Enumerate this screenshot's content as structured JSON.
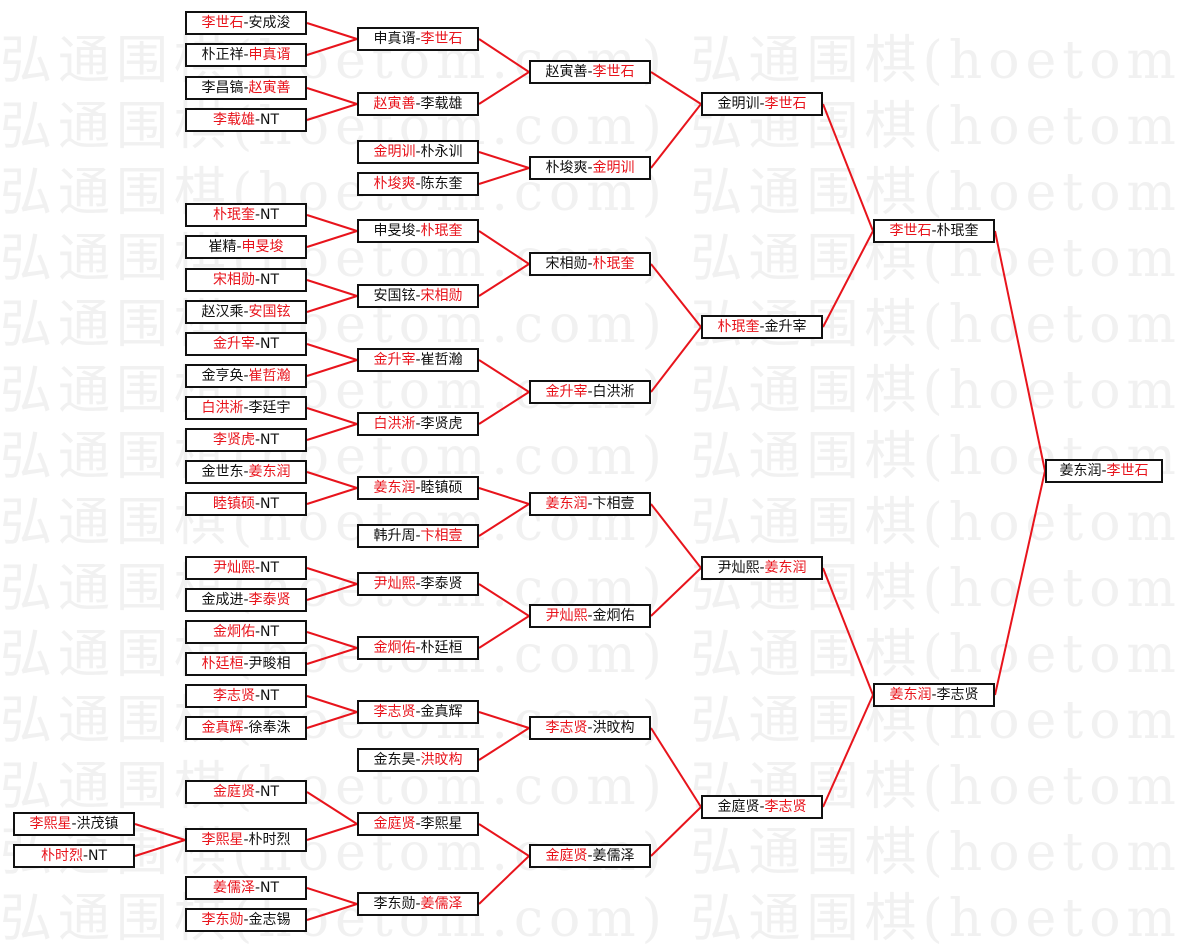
{
  "watermark": "弘通围棋(hoetom.com)",
  "colors": {
    "winner": "#e8141c",
    "line": "#e8141c",
    "text": "#111111",
    "border": "#111111"
  },
  "rounds": [
    {
      "matches": [
        {
          "a": "李熙星",
          "b": "洪茂镇",
          "winner": "a"
        },
        {
          "a": "朴时烈",
          "b": "NT",
          "winner": "a"
        }
      ]
    },
    {
      "matches": [
        {
          "a": "李世石",
          "b": "安成浚",
          "winner": "a"
        },
        {
          "a": "朴正祥",
          "b": "申真谞",
          "winner": "b"
        },
        {
          "a": "李昌镐",
          "b": "赵寅善",
          "winner": "b"
        },
        {
          "a": "李载雄",
          "b": "NT",
          "winner": "a"
        },
        {
          "a": "朴珉奎",
          "b": "NT",
          "winner": "a"
        },
        {
          "a": "崔精",
          "b": "申旻埈",
          "winner": "b"
        },
        {
          "a": "宋相勋",
          "b": "NT",
          "winner": "a"
        },
        {
          "a": "赵汉乘",
          "b": "安国铉",
          "winner": "b"
        },
        {
          "a": "金升宰",
          "b": "NT",
          "winner": "a"
        },
        {
          "a": "金亨奂",
          "b": "崔哲瀚",
          "winner": "b"
        },
        {
          "a": "白洪淅",
          "b": "李廷宇",
          "winner": "a"
        },
        {
          "a": "李贤虎",
          "b": "NT",
          "winner": "a"
        },
        {
          "a": "金世东",
          "b": "姜东润",
          "winner": "b"
        },
        {
          "a": "睦镇硕",
          "b": "NT",
          "winner": "a"
        },
        {
          "a": "尹灿熙",
          "b": "NT",
          "winner": "a"
        },
        {
          "a": "金成进",
          "b": "李泰贤",
          "winner": "b"
        },
        {
          "a": "金炯佑",
          "b": "NT",
          "winner": "a"
        },
        {
          "a": "朴廷桓",
          "b": "尹畯相",
          "winner": "a"
        },
        {
          "a": "李志贤",
          "b": "NT",
          "winner": "a"
        },
        {
          "a": "金真辉",
          "b": "徐奉洙",
          "winner": "a"
        },
        {
          "a": "金庭贤",
          "b": "NT",
          "winner": "a"
        },
        {
          "a": "李熙星",
          "b": "朴时烈",
          "winner": "a"
        },
        {
          "a": "姜儒泽",
          "b": "NT",
          "winner": "a"
        },
        {
          "a": "李东勋",
          "b": "金志锡",
          "winner": "a"
        }
      ]
    },
    {
      "matches": [
        {
          "a": "申真谞",
          "b": "李世石",
          "winner": "b"
        },
        {
          "a": "赵寅善",
          "b": "李载雄",
          "winner": "a"
        },
        {
          "a": "金明训",
          "b": "朴永训",
          "winner": "a"
        },
        {
          "a": "朴埈爽",
          "b": "陈东奎",
          "winner": "a"
        },
        {
          "a": "申旻埈",
          "b": "朴珉奎",
          "winner": "b"
        },
        {
          "a": "安国铉",
          "b": "宋相勋",
          "winner": "b"
        },
        {
          "a": "金升宰",
          "b": "崔哲瀚",
          "winner": "a"
        },
        {
          "a": "白洪淅",
          "b": "李贤虎",
          "winner": "a"
        },
        {
          "a": "姜东润",
          "b": "睦镇硕",
          "winner": "a"
        },
        {
          "a": "韩升周",
          "b": "卞相壹",
          "winner": "b"
        },
        {
          "a": "尹灿熙",
          "b": "李泰贤",
          "winner": "a"
        },
        {
          "a": "金炯佑",
          "b": "朴廷桓",
          "winner": "a"
        },
        {
          "a": "李志贤",
          "b": "金真辉",
          "winner": "a"
        },
        {
          "a": "金东昊",
          "b": "洪旼构",
          "winner": "b"
        },
        {
          "a": "金庭贤",
          "b": "李熙星",
          "winner": "a"
        },
        {
          "a": "李东勋",
          "b": "姜儒泽",
          "winner": "b"
        }
      ]
    },
    {
      "matches": [
        {
          "a": "赵寅善",
          "b": "李世石",
          "winner": "b"
        },
        {
          "a": "朴埈爽",
          "b": "金明训",
          "winner": "b"
        },
        {
          "a": "宋相勋",
          "b": "朴珉奎",
          "winner": "b"
        },
        {
          "a": "金升宰",
          "b": "白洪淅",
          "winner": "a"
        },
        {
          "a": "姜东润",
          "b": "卞相壹",
          "winner": "a"
        },
        {
          "a": "尹灿熙",
          "b": "金炯佑",
          "winner": "a"
        },
        {
          "a": "李志贤",
          "b": "洪旼构",
          "winner": "a"
        },
        {
          "a": "金庭贤",
          "b": "姜儒泽",
          "winner": "a"
        }
      ]
    },
    {
      "matches": [
        {
          "a": "金明训",
          "b": "李世石",
          "winner": "b"
        },
        {
          "a": "朴珉奎",
          "b": "金升宰",
          "winner": "a"
        },
        {
          "a": "尹灿熙",
          "b": "姜东润",
          "winner": "b"
        },
        {
          "a": "金庭贤",
          "b": "李志贤",
          "winner": "b"
        }
      ]
    },
    {
      "matches": [
        {
          "a": "李世石",
          "b": "朴珉奎",
          "winner": "a"
        },
        {
          "a": "姜东润",
          "b": "李志贤",
          "winner": "a"
        }
      ]
    },
    {
      "matches": [
        {
          "a": "姜东润",
          "b": "李世石",
          "winner": "b"
        }
      ]
    }
  ]
}
